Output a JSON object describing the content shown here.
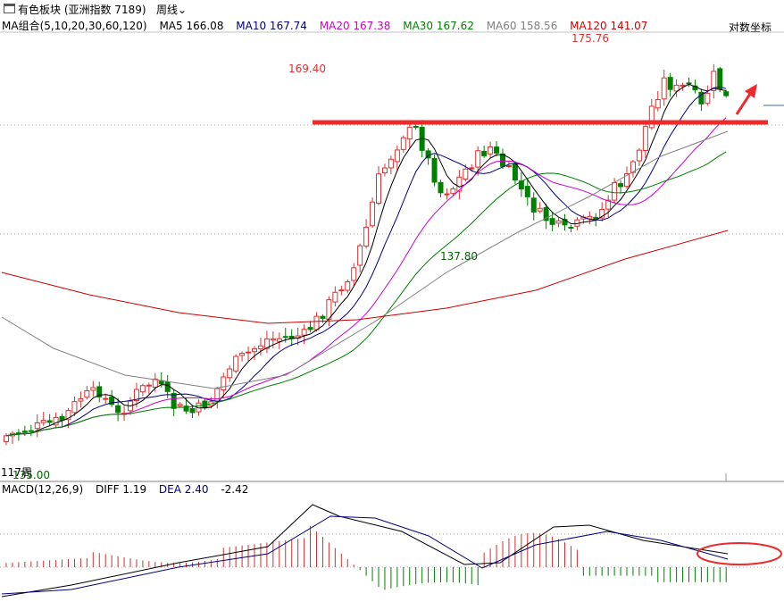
{
  "header": {
    "instrument": "有色板块 (亚洲指数 7189)",
    "period": "周线"
  },
  "ma_legend": {
    "group": "MA组合(5,10,20,30,60,120)",
    "items": [
      {
        "label": "MA5 166.08",
        "color": "#000000"
      },
      {
        "label": "MA10 167.74",
        "color": "#000080"
      },
      {
        "label": "MA20 167.38",
        "color": "#cc00cc"
      },
      {
        "label": "MA30 167.62",
        "color": "#008000"
      },
      {
        "label": "MA60 158.56",
        "color": "#808080"
      },
      {
        "label": "MA120 141.07",
        "color": "#cc0000"
      }
    ],
    "log_scale_label": "对数坐标"
  },
  "macd_legend": {
    "group": "MACD(12,26,9)",
    "diff": "DIFF   1.19",
    "dea": "DEA   2.40",
    "macd": "-2.42"
  },
  "chart_data": {
    "type": "candlestick",
    "bars_visible": 117,
    "ylim": [
      135,
      180
    ],
    "annotations": [
      {
        "text": "169.40",
        "kind": "high"
      },
      {
        "text": "175.76",
        "kind": "high"
      },
      {
        "text": "137.80",
        "kind": "low"
      },
      {
        "text": "135.00",
        "kind": "low"
      },
      {
        "text": "117周",
        "kind": "count"
      }
    ],
    "colors": {
      "up": "#e03030",
      "down": "#008000",
      "support_line": "#ee2a2a",
      "arrow": "#ee2a2a",
      "ellipse": "#ee2a2a",
      "macd_pos": "#d03030",
      "macd_neg": "#008000",
      "diff": "#000000",
      "dea": "#000080"
    }
  }
}
